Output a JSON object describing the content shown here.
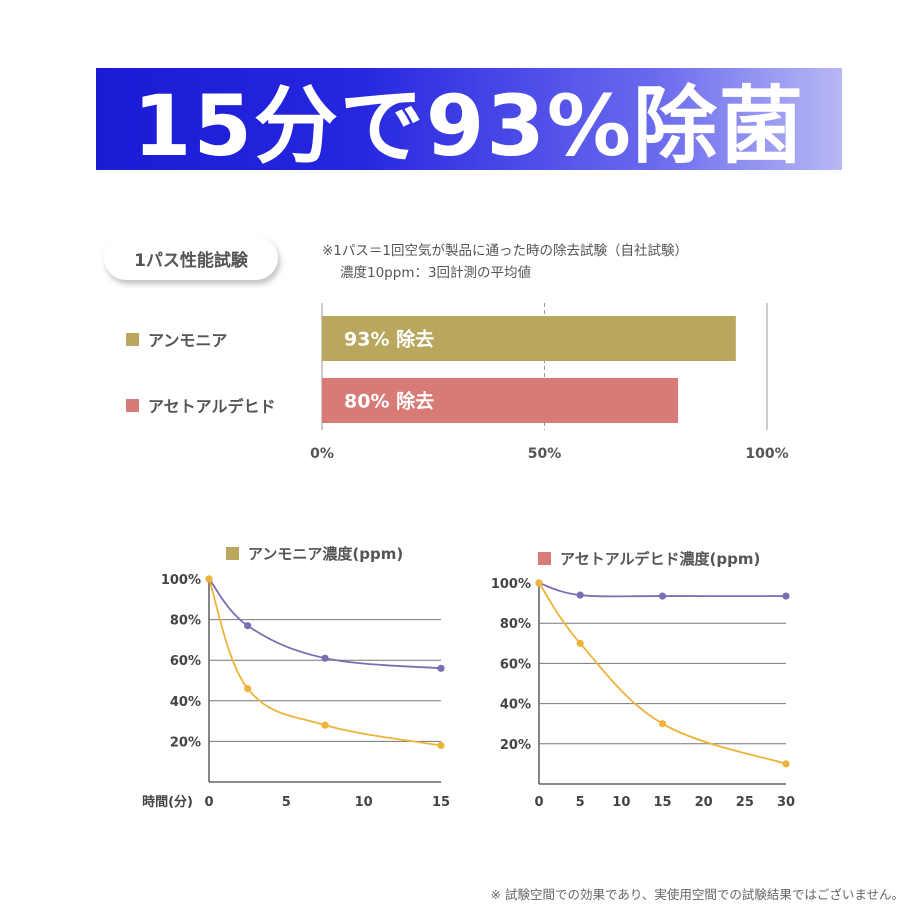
{
  "banner": {
    "title": "15分で93%除菌"
  },
  "test_label": "1パス性能試験",
  "notes": {
    "line1": "※1パス＝1回空気が製品に通った時の除去試験（自社試験）",
    "line2": "濃度10ppm：3回計測の平均値"
  },
  "footer": "※ 試験空間での効果であり、実使用空間での試験結果ではございません。",
  "colors": {
    "banner_blue": "#1b1bd6",
    "ammonia": "#b8a75c",
    "acetaldehyde": "#d87a76",
    "series_purple": "#7b6fb3",
    "series_yellow": "#ecb43a"
  },
  "chart_data": [
    {
      "type": "bar",
      "orientation": "horizontal",
      "categories": [
        "アンモニア",
        "アセトアルデヒド"
      ],
      "values": [
        93,
        80
      ],
      "data_labels": [
        "93% 除去",
        "80% 除去"
      ],
      "xlim": [
        0,
        100
      ],
      "x_ticks": [
        "0%",
        "50%",
        "100%"
      ]
    },
    {
      "type": "line",
      "title": "アンモニア濃度(ppm)",
      "xlabel": "時間(分)",
      "x_ticks": [
        0,
        5,
        10,
        15
      ],
      "y_ticks": [
        "20%",
        "40%",
        "60%",
        "80%",
        "100%"
      ],
      "xlim": [
        0,
        15
      ],
      "ylim": [
        0,
        100
      ],
      "series": [
        {
          "color": "purple",
          "points": [
            [
              0,
              100
            ],
            [
              2.5,
              77
            ],
            [
              7.5,
              61
            ],
            [
              15,
              56
            ]
          ]
        },
        {
          "color": "yellow",
          "points": [
            [
              0,
              100
            ],
            [
              2.5,
              46
            ],
            [
              7.5,
              28
            ],
            [
              15,
              18
            ]
          ]
        }
      ]
    },
    {
      "type": "line",
      "title": "アセトアルデヒド濃度(ppm)",
      "x_ticks": [
        0,
        5,
        10,
        15,
        20,
        25,
        30
      ],
      "y_ticks": [
        "20%",
        "40%",
        "60%",
        "80%",
        "100%"
      ],
      "xlim": [
        0,
        30
      ],
      "ylim": [
        0,
        100
      ],
      "series": [
        {
          "color": "purple",
          "points": [
            [
              0,
              100
            ],
            [
              5,
              94
            ],
            [
              15,
              93.5
            ],
            [
              30,
              93.5
            ]
          ]
        },
        {
          "color": "yellow",
          "points": [
            [
              0,
              100
            ],
            [
              5,
              70
            ],
            [
              15,
              30
            ],
            [
              30,
              10
            ]
          ]
        }
      ]
    }
  ]
}
